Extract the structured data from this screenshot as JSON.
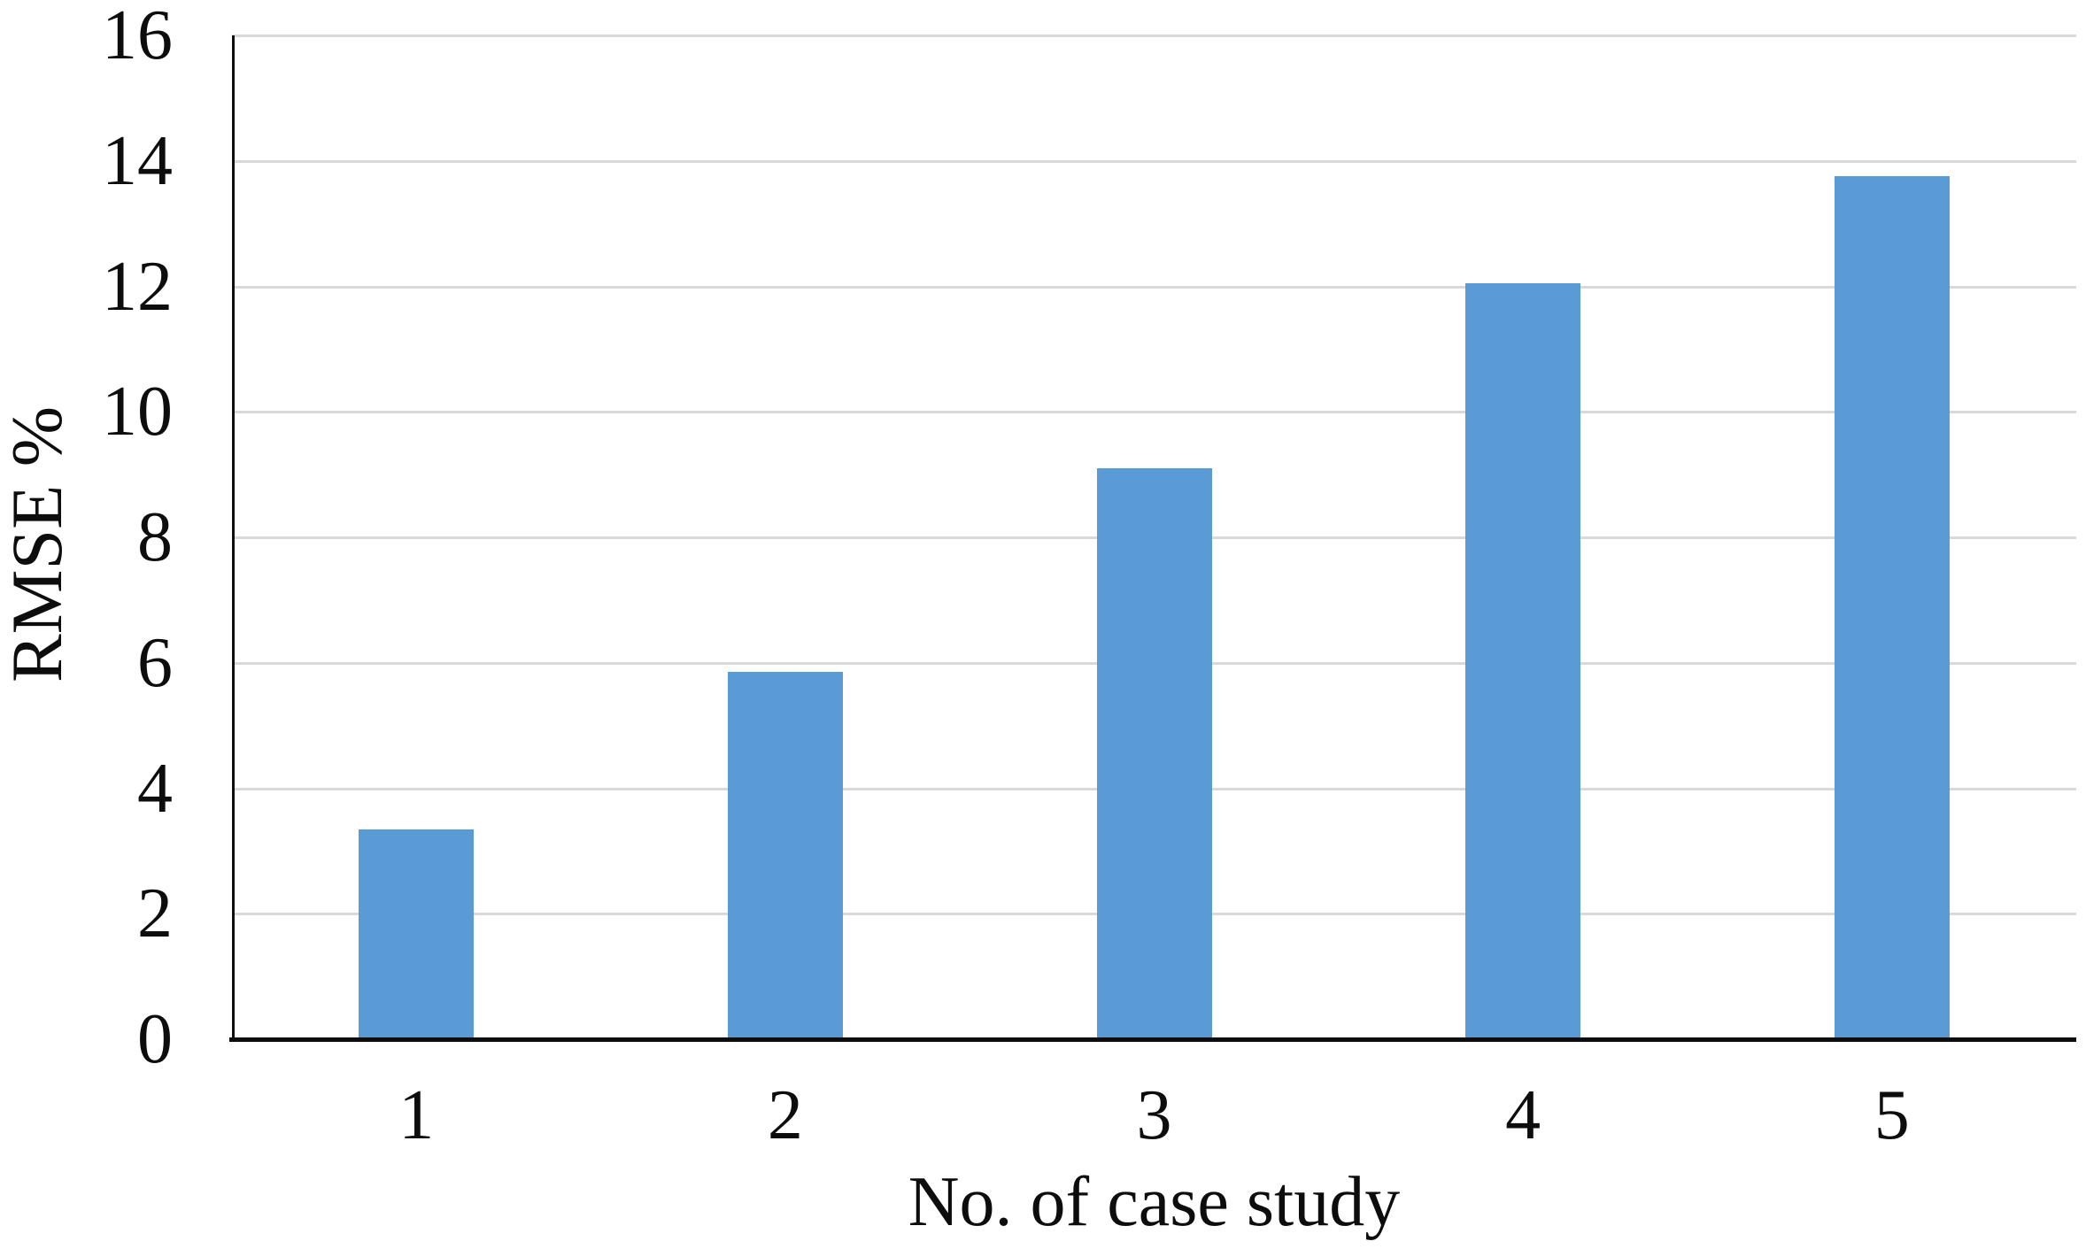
{
  "chart_data": {
    "type": "bar",
    "categories": [
      "1",
      "2",
      "3",
      "4",
      "5"
    ],
    "values": [
      3.35,
      5.85,
      9.1,
      12.05,
      13.75
    ],
    "title": "",
    "xlabel": "No. of case study",
    "ylabel": "RMSE %",
    "ylim": [
      0,
      16
    ],
    "yticks": [
      0,
      2,
      4,
      6,
      8,
      10,
      12,
      14,
      16
    ],
    "grid": true,
    "legend": "none",
    "bar_color": "#5b9bd5",
    "gridline_color": "#d9d9d9",
    "axis_color": "#0d0d0d",
    "text_color": "#0d0d0d",
    "background_color": "#ffffff"
  }
}
